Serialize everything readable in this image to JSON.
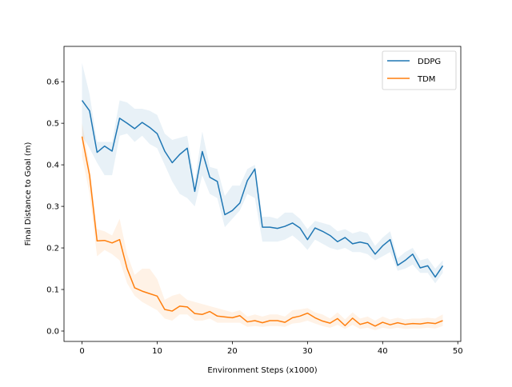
{
  "chart_data": {
    "type": "line",
    "title": "",
    "xlabel": "Environment Steps (x1000)",
    "ylabel": "Final Distance to Goal (m)",
    "xlim": [
      -2.4,
      50.4
    ],
    "ylim": [
      -0.025,
      0.685
    ],
    "xticks": [
      0,
      10,
      20,
      30,
      40,
      50
    ],
    "yticks": [
      0.0,
      0.1,
      0.2,
      0.3,
      0.4,
      0.5,
      0.6
    ],
    "ytick_labels": [
      "0.0",
      "0.1",
      "0.2",
      "0.3",
      "0.4",
      "0.5",
      "0.6"
    ],
    "grid": false,
    "legend_position": "top-right",
    "x": [
      0,
      1,
      2,
      3,
      4,
      5,
      6,
      7,
      8,
      9,
      10,
      11,
      12,
      13,
      14,
      15,
      16,
      17,
      18,
      19,
      20,
      21,
      22,
      23,
      24,
      25,
      26,
      27,
      28,
      29,
      30,
      31,
      32,
      33,
      34,
      35,
      36,
      37,
      38,
      39,
      40,
      41,
      42,
      43,
      44,
      45,
      46,
      47,
      48
    ],
    "series": [
      {
        "name": "DDPG",
        "color": "#1f77b4",
        "values": [
          0.555,
          0.53,
          0.43,
          0.445,
          0.433,
          0.512,
          0.5,
          0.487,
          0.502,
          0.49,
          0.475,
          0.433,
          0.405,
          0.425,
          0.44,
          0.336,
          0.432,
          0.37,
          0.36,
          0.28,
          0.29,
          0.308,
          0.362,
          0.39,
          0.25,
          0.25,
          0.247,
          0.252,
          0.26,
          0.248,
          0.22,
          0.248,
          0.24,
          0.23,
          0.215,
          0.225,
          0.21,
          0.214,
          0.21,
          0.185,
          0.205,
          0.22,
          0.158,
          0.17,
          0.185,
          0.152,
          0.157,
          0.13,
          0.157
        ],
        "lower": [
          0.47,
          0.44,
          0.405,
          0.375,
          0.375,
          0.47,
          0.475,
          0.455,
          0.47,
          0.45,
          0.44,
          0.4,
          0.36,
          0.33,
          0.32,
          0.3,
          0.375,
          0.33,
          0.32,
          0.25,
          0.27,
          0.29,
          0.33,
          0.32,
          0.215,
          0.215,
          0.215,
          0.22,
          0.23,
          0.215,
          0.195,
          0.22,
          0.21,
          0.2,
          0.195,
          0.2,
          0.19,
          0.19,
          0.185,
          0.17,
          0.18,
          0.19,
          0.145,
          0.15,
          0.16,
          0.14,
          0.14,
          0.115,
          0.14
        ],
        "upper": [
          0.645,
          0.57,
          0.455,
          0.455,
          0.455,
          0.555,
          0.55,
          0.535,
          0.535,
          0.53,
          0.52,
          0.475,
          0.46,
          0.465,
          0.47,
          0.36,
          0.48,
          0.395,
          0.39,
          0.325,
          0.35,
          0.35,
          0.39,
          0.4,
          0.275,
          0.275,
          0.27,
          0.285,
          0.285,
          0.27,
          0.245,
          0.265,
          0.26,
          0.255,
          0.24,
          0.245,
          0.235,
          0.24,
          0.235,
          0.205,
          0.225,
          0.24,
          0.175,
          0.19,
          0.2,
          0.17,
          0.175,
          0.15,
          0.17
        ]
      },
      {
        "name": "TDM",
        "color": "#ff7f0e",
        "values": [
          0.468,
          0.375,
          0.217,
          0.218,
          0.212,
          0.22,
          0.15,
          0.104,
          0.096,
          0.09,
          0.084,
          0.052,
          0.048,
          0.06,
          0.058,
          0.042,
          0.04,
          0.047,
          0.036,
          0.034,
          0.032,
          0.037,
          0.022,
          0.025,
          0.02,
          0.025,
          0.025,
          0.021,
          0.032,
          0.036,
          0.043,
          0.032,
          0.024,
          0.019,
          0.03,
          0.013,
          0.031,
          0.016,
          0.021,
          0.012,
          0.021,
          0.015,
          0.02,
          0.016,
          0.018,
          0.017,
          0.02,
          0.018,
          0.025
        ],
        "lower": [
          0.42,
          0.33,
          0.18,
          0.195,
          0.185,
          0.17,
          0.115,
          0.085,
          0.07,
          0.06,
          0.05,
          0.03,
          0.025,
          0.04,
          0.04,
          0.025,
          0.025,
          0.03,
          0.02,
          0.02,
          0.02,
          0.02,
          0.01,
          0.012,
          0.01,
          0.012,
          0.012,
          0.01,
          0.018,
          0.02,
          0.025,
          0.018,
          0.012,
          0.008,
          0.015,
          0.005,
          0.015,
          0.005,
          0.008,
          0.002,
          0.008,
          0.005,
          0.008,
          0.005,
          0.006,
          0.006,
          0.008,
          0.006,
          0.012
        ],
        "upper": [
          0.5,
          0.4,
          0.245,
          0.24,
          0.23,
          0.27,
          0.185,
          0.135,
          0.15,
          0.15,
          0.125,
          0.075,
          0.085,
          0.09,
          0.075,
          0.07,
          0.065,
          0.06,
          0.055,
          0.05,
          0.045,
          0.05,
          0.035,
          0.04,
          0.035,
          0.04,
          0.04,
          0.035,
          0.05,
          0.052,
          0.055,
          0.045,
          0.04,
          0.03,
          0.045,
          0.028,
          0.045,
          0.03,
          0.035,
          0.025,
          0.035,
          0.028,
          0.032,
          0.028,
          0.03,
          0.03,
          0.032,
          0.03,
          0.04
        ]
      }
    ]
  }
}
